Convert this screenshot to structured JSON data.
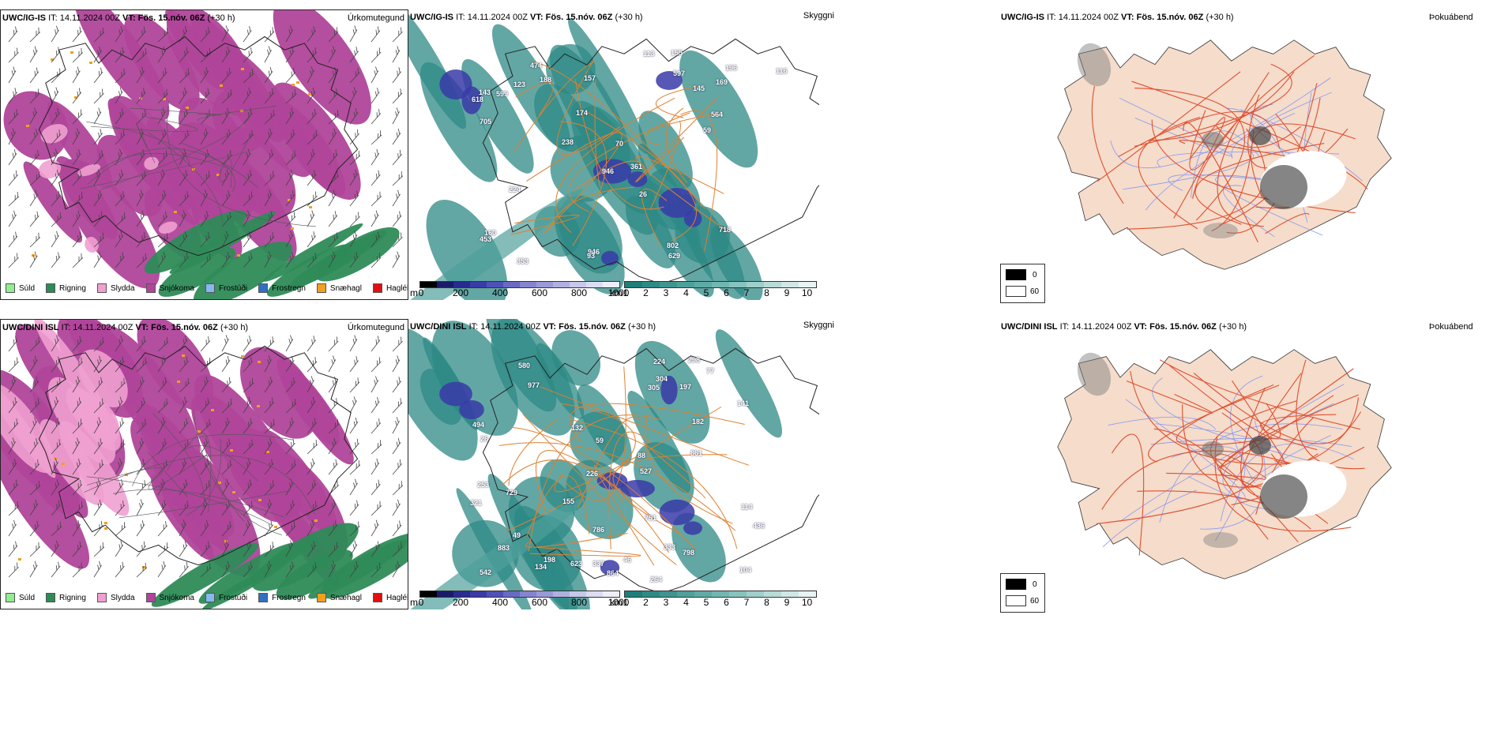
{
  "rows": [
    {
      "model": "UWC/IG-IS",
      "it_label": "IT: 14.11.2024 00Z",
      "vt_label": "VT: Fös. 15.nóv. 06Z",
      "lead": "(+30 h)",
      "panel1_title": "Úrkomutegund",
      "panel2_title": "Skyggni",
      "panel3_title": "Þokuábendi",
      "visibility_labels": [
        "474",
        "564",
        "629",
        "618",
        "169",
        "453",
        "718",
        "946",
        "597",
        "145",
        "160",
        "155",
        "224",
        "705",
        "946",
        "361",
        "59",
        "188",
        "143",
        "174",
        "113",
        "353",
        "238",
        "802",
        "123",
        "116",
        "196",
        "157",
        "26",
        "93",
        "599",
        "70"
      ]
    },
    {
      "model": "UWC/DINI ISL",
      "it_label": "IT: 14.11.2024 00Z",
      "vt_label": "VT: Fös. 15.nóv. 06Z",
      "lead": "(+30 h)",
      "panel1_title": "Úrkomutegund",
      "panel2_title": "Skyggni",
      "panel3_title": "Þokuábendi",
      "visibility_labels": [
        "198",
        "527",
        "264",
        "304",
        "305",
        "798",
        "623",
        "883",
        "542",
        "436",
        "224",
        "729",
        "46",
        "134",
        "977",
        "751",
        "864",
        "333",
        "226",
        "88",
        "197",
        "155",
        "114",
        "182",
        "861",
        "298",
        "321",
        "141",
        "786",
        "253",
        "494",
        "132",
        "26",
        "77",
        "104",
        "59",
        "49",
        "580",
        "337"
      ]
    }
  ],
  "legend": [
    {
      "label": "Súld",
      "color": "#90ee90"
    },
    {
      "label": "Rigning",
      "color": "#2e8b57"
    },
    {
      "label": "Slydda",
      "color": "#f0a0d0"
    },
    {
      "label": "Snjókoma",
      "color": "#b0459a"
    },
    {
      "label": "Frostúði",
      "color": "#87b8f0"
    },
    {
      "label": "Frostregn",
      "color": "#3070c0"
    },
    {
      "label": "Snæhagl",
      "color": "#f0a020"
    },
    {
      "label": "Haglél",
      "color": "#e01010"
    }
  ],
  "cbar_m": {
    "unit": "m",
    "ticks": [
      "0",
      "200",
      "400",
      "600",
      "800",
      "1000"
    ],
    "colors": [
      "#000000",
      "#1a1a6a",
      "#2a2a90",
      "#3a3aa8",
      "#5050b8",
      "#6a6ac4",
      "#8484d0",
      "#9a9ad8",
      "#b0b0e0",
      "#c8c8ea",
      "#dcdcf2",
      "#eeeef8"
    ]
  },
  "cbar_km": {
    "unit": "km",
    "ticks": [
      "1",
      "2",
      "3",
      "4",
      "5",
      "6",
      "7",
      "8",
      "9",
      "10"
    ],
    "colors": [
      "#1e7f7a",
      "#2e8a85",
      "#3e9590",
      "#4ea09b",
      "#5eaba6",
      "#72b6b1",
      "#88c2bd",
      "#a0cfca",
      "#b8dbd7",
      "#d0e8e5",
      "#e8f4f2"
    ]
  },
  "fog_key": {
    "labels": [
      "0",
      "60"
    ]
  }
}
